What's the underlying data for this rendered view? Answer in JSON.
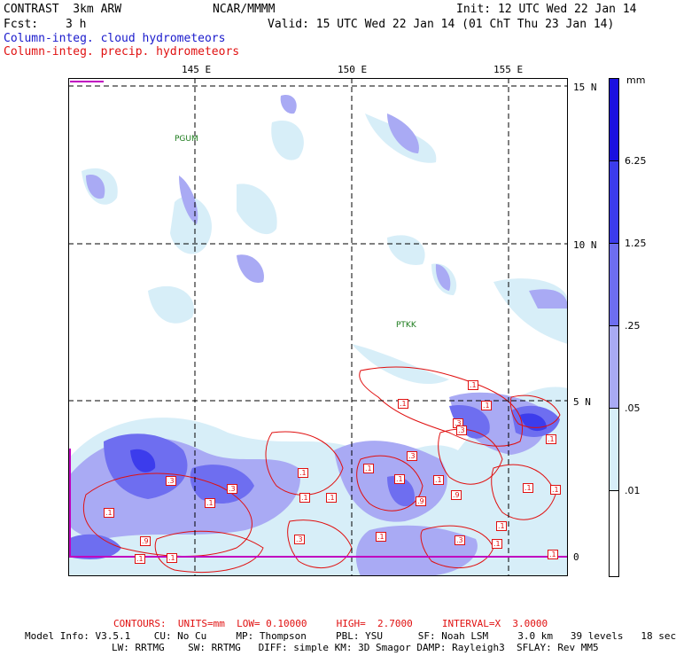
{
  "header": {
    "model": "CONTRAST  3km ARW",
    "org": "NCAR/MMMM",
    "init": "Init: 12 UTC Wed 22 Jan 14",
    "fcst_label": "Fcst:",
    "fcst_value": "3 h",
    "valid": "Valid: 15 UTC Wed 22 Jan 14 (01 ChT Thu 23 Jan 14)",
    "field1": "Column-integ. cloud hydrometeors",
    "field2": "Column-integ. precip. hydrometeors"
  },
  "map": {
    "lon_labels": [
      "145 E",
      "150 E",
      "155 E"
    ],
    "lat_labels": [
      "15 N",
      "10 N",
      "5 N",
      "0"
    ],
    "stations": [
      "PGUM",
      "PTKK"
    ],
    "contour_labels": [
      ".1",
      ".1",
      ".1",
      ".1",
      ".3",
      ".3",
      ".1",
      ".1",
      ".1",
      ".3",
      ".3",
      ".1",
      ".9",
      ".9",
      ".1",
      ".3",
      ".1",
      ".1",
      ".1",
      ".1",
      ".1",
      ".1",
      ".3",
      ".1",
      ".1",
      ".1",
      ".9",
      ".1",
      ".1",
      ".3"
    ]
  },
  "colorbar": {
    "unit": "mm",
    "labels": [
      "6.25",
      "1.25",
      ".25",
      ".05",
      ".01"
    ],
    "colors": [
      "#1a10e0",
      "#3c3cec",
      "#6e6ef0",
      "#a9aaf4",
      "#d7eef8",
      "#ffffff"
    ]
  },
  "footer": {
    "contours": "CONTOURS:  UNITS=mm  LOW= 0.10000     HIGH=  2.7000     INTERVAL=X  3.0000",
    "line1": "Model Info: V3.5.1    CU: No Cu     MP: Thompson     PBL: YSU      SF: Noah LSM     3.0 km   39 levels   18 sec",
    "line2": "LW: RRTMG    SW: RRTMG   DIFF: simple KM: 3D Smagor DAMP: Rayleigh3  SFLAY: Rev MM5"
  }
}
